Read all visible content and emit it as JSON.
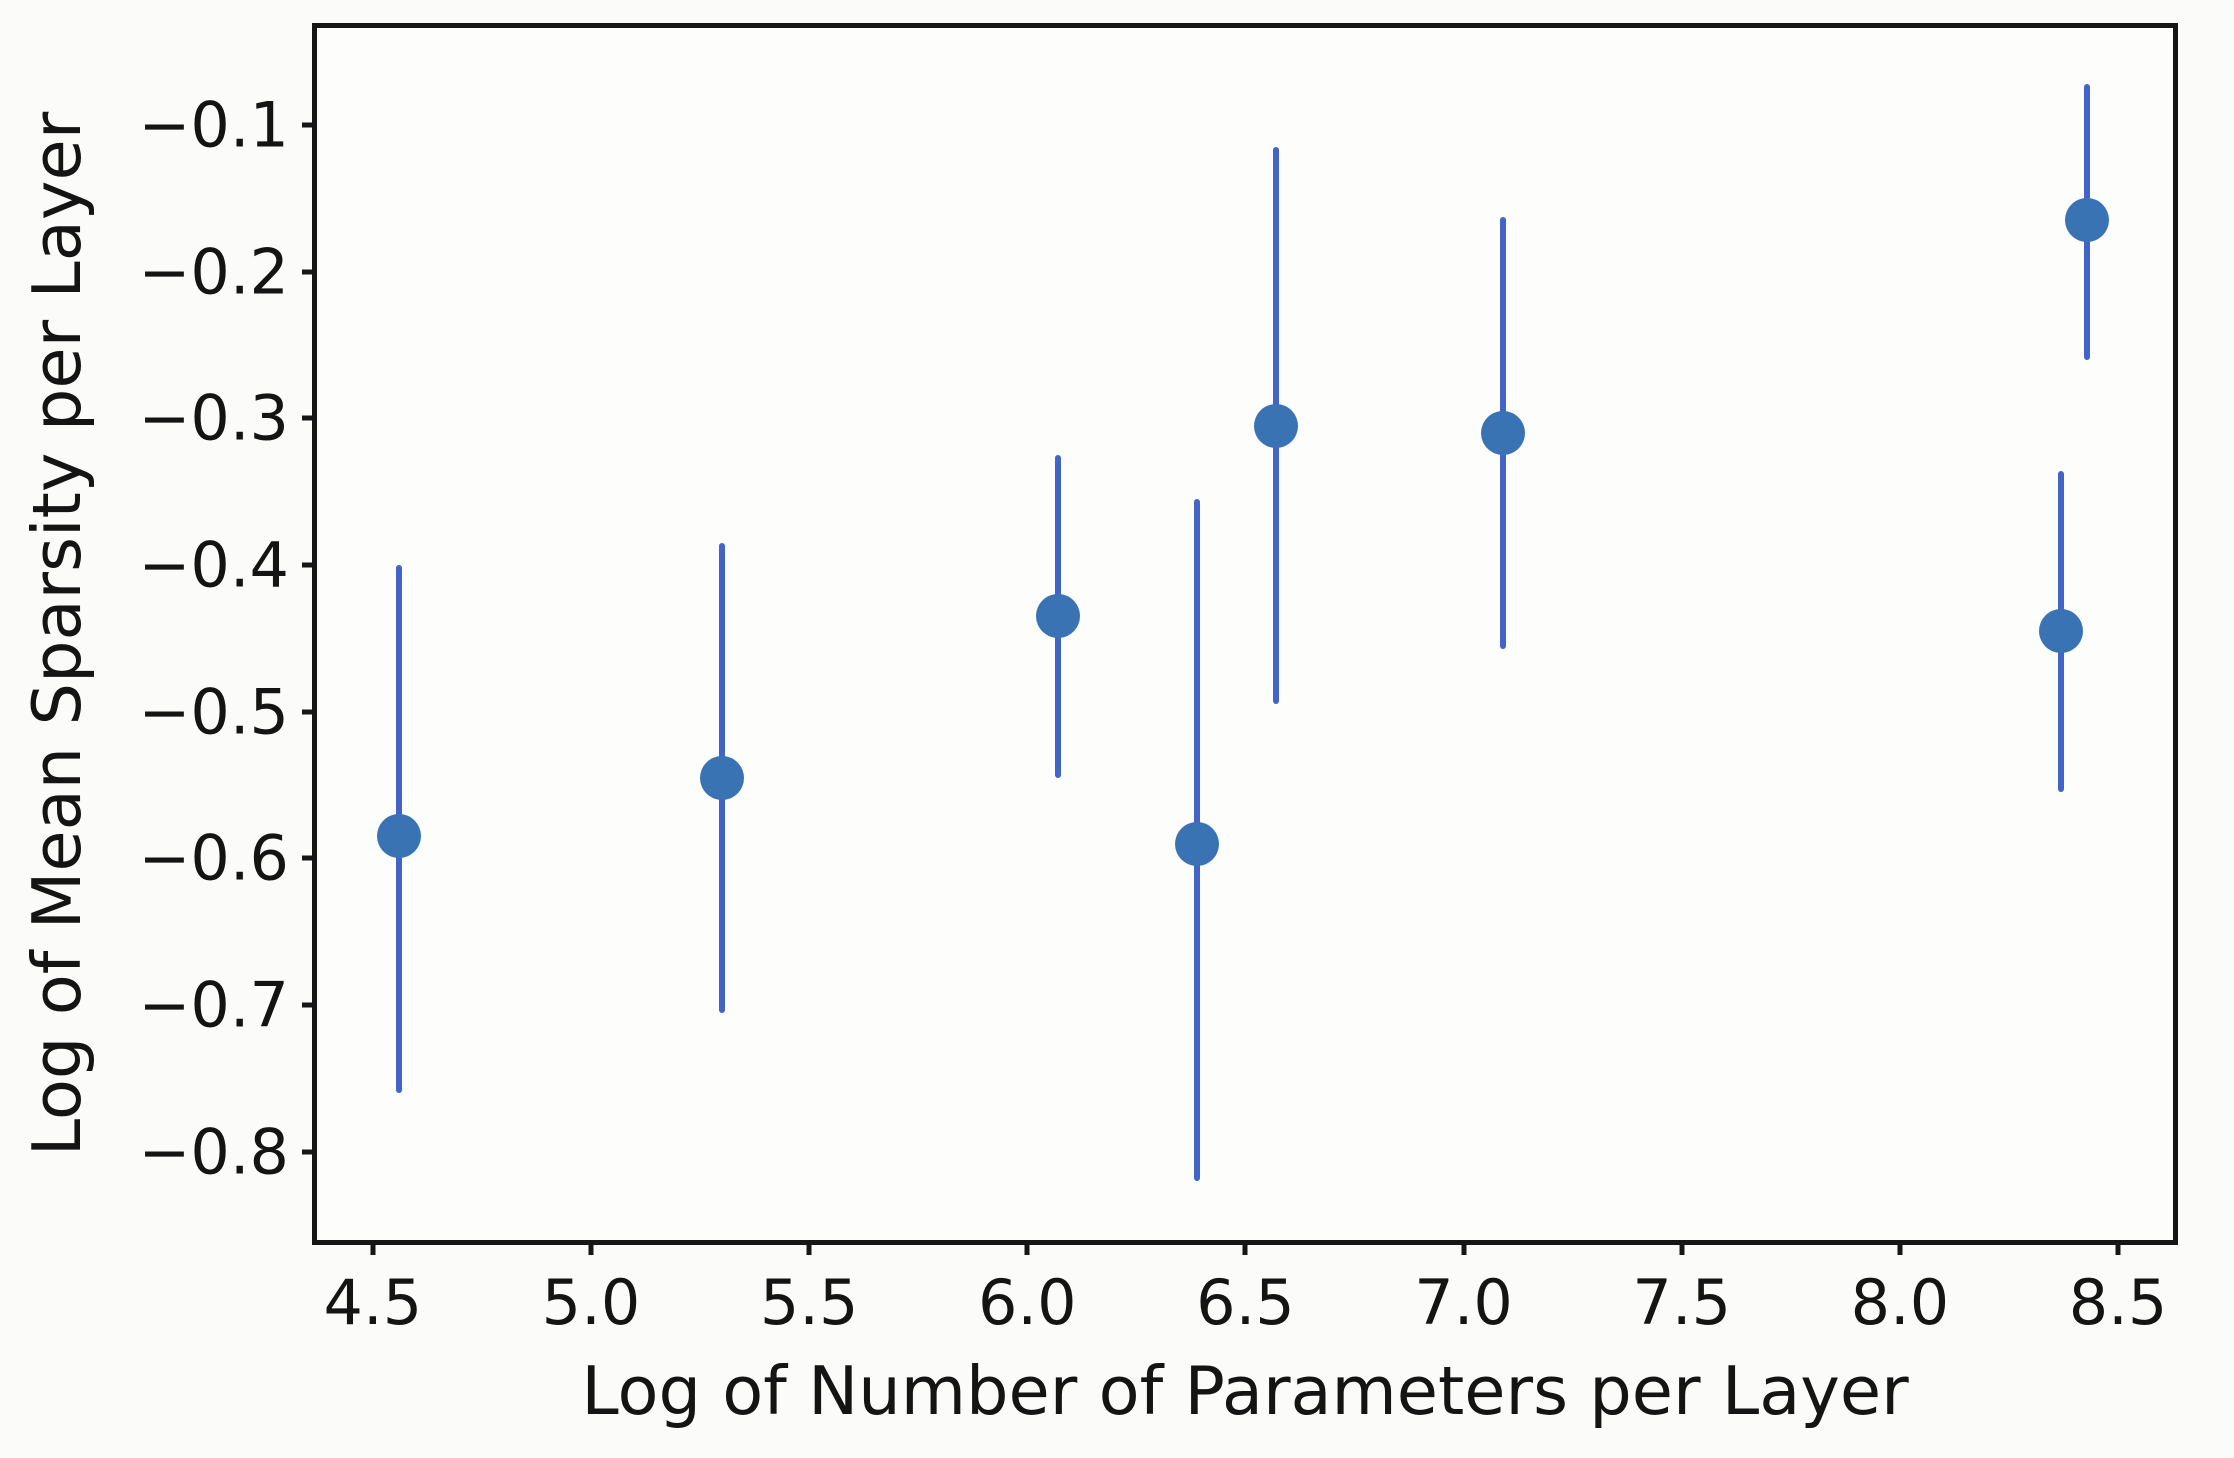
{
  "chart_data": {
    "type": "scatter",
    "title": "",
    "xlabel": "Log of Number of Parameters per Layer",
    "ylabel": "Log of Mean Sparsity per Layer",
    "xlim": [
      4.372,
      8.626
    ],
    "ylim": [
      -0.86,
      -0.034
    ],
    "xticks": [
      4.5,
      5.0,
      5.5,
      6.0,
      6.5,
      7.0,
      7.5,
      8.0,
      8.5
    ],
    "yticks": [
      -0.1,
      -0.2,
      -0.3,
      -0.4,
      -0.5,
      -0.6,
      -0.7,
      -0.8
    ],
    "grid": false,
    "legend": false,
    "marker_color": "#3a73b4",
    "errorbar_color": "#4263c7",
    "axis_color": "#161616",
    "background_color": "#fbfbf9",
    "points": [
      {
        "x": 4.56,
        "y": -0.585,
        "err_low": -0.76,
        "err_high": -0.4
      },
      {
        "x": 5.3,
        "y": -0.545,
        "err_low": -0.705,
        "err_high": -0.385
      },
      {
        "x": 6.07,
        "y": -0.435,
        "err_low": -0.545,
        "err_high": -0.325
      },
      {
        "x": 6.39,
        "y": -0.59,
        "err_low": -0.82,
        "err_high": -0.355
      },
      {
        "x": 6.57,
        "y": -0.305,
        "err_low": -0.495,
        "err_high": -0.115
      },
      {
        "x": 7.09,
        "y": -0.31,
        "err_low": -0.457,
        "err_high": -0.163
      },
      {
        "x": 8.37,
        "y": -0.445,
        "err_low": -0.555,
        "err_high": -0.336
      },
      {
        "x": 8.43,
        "y": -0.165,
        "err_low": -0.26,
        "err_high": -0.072
      }
    ]
  }
}
